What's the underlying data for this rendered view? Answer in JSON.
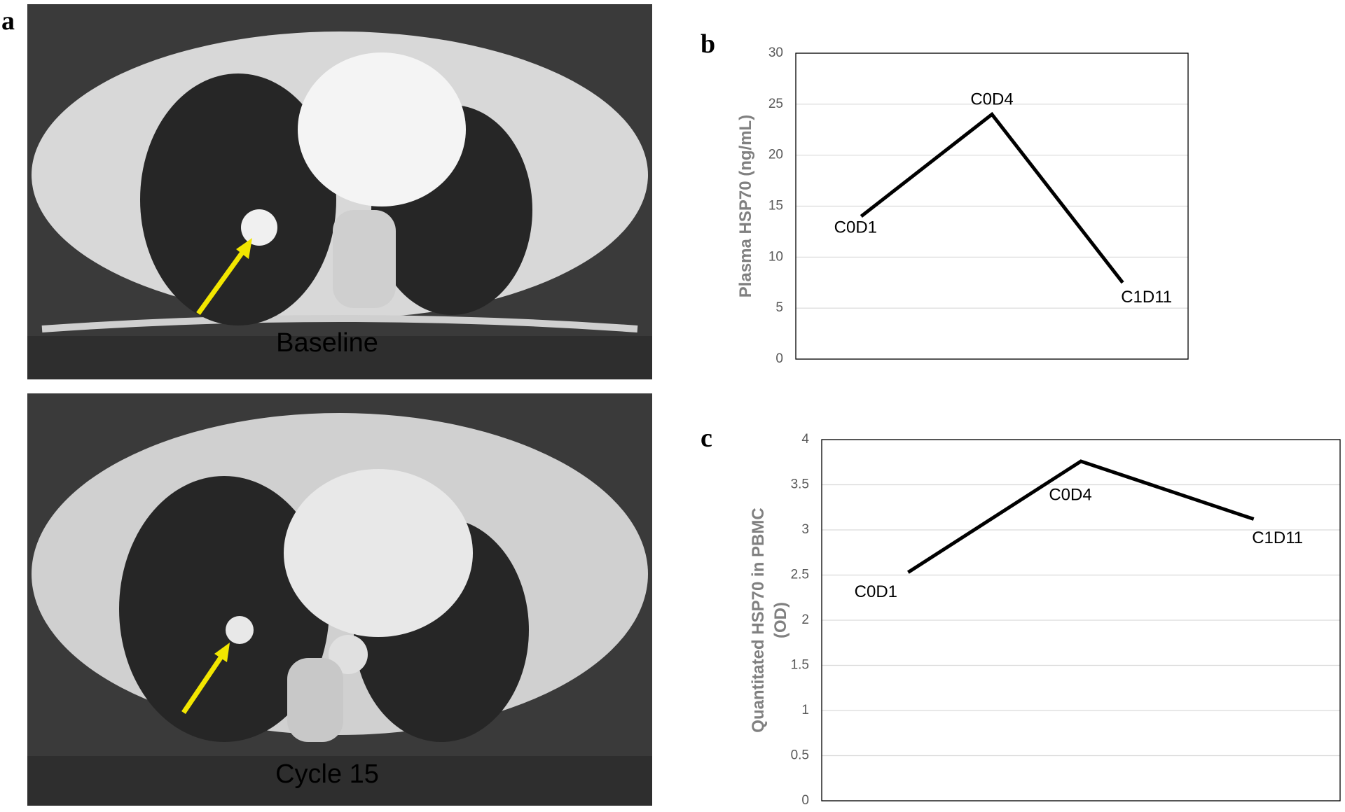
{
  "panels": {
    "a": "a",
    "b": "b",
    "c": "c"
  },
  "images": [
    {
      "caption": "Baseline"
    },
    {
      "caption": "Cycle 15"
    }
  ],
  "chart_data": [
    {
      "type": "line",
      "ylabel": "Plasma HSP70 (ng/mL)",
      "categories": [
        "C0D1",
        "C0D4",
        "C1D11"
      ],
      "values": [
        14,
        24,
        7.5
      ],
      "color": "#000000",
      "ylim": [
        0,
        30
      ],
      "yticks": [
        0,
        5,
        10,
        15,
        20,
        25,
        30
      ],
      "grid": true
    },
    {
      "type": "line",
      "ylabel": [
        "Quantitated HSP70 in PBMC",
        "(OD)"
      ],
      "categories": [
        "C0D1",
        "C0D4",
        "C1D11"
      ],
      "values": [
        2.53,
        3.76,
        3.12
      ],
      "color": "#000000",
      "ylim": [
        0,
        4
      ],
      "yticks": [
        0,
        0.5,
        1,
        1.5,
        2,
        2.5,
        3,
        3.5,
        4
      ],
      "grid": true
    }
  ]
}
